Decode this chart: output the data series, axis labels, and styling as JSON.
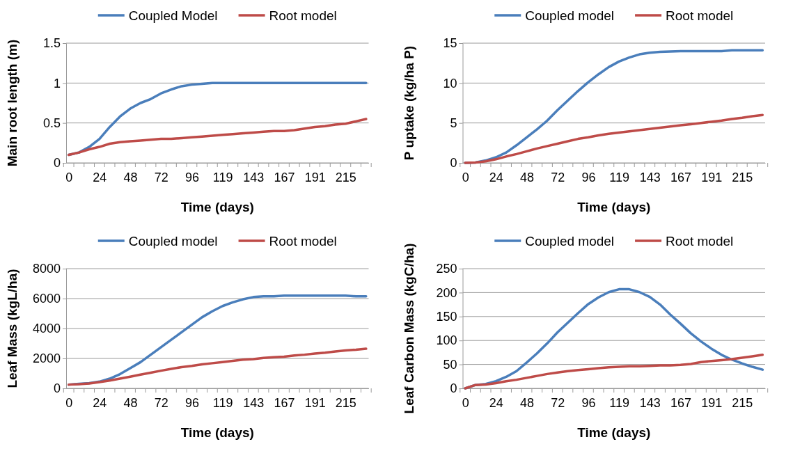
{
  "chart_data": [
    {
      "type": "line",
      "xlabel": "Time (days)",
      "ylabel": "Main root length (m)",
      "categories": [
        "0",
        null,
        null,
        "24",
        null,
        null,
        "48",
        null,
        null,
        "72",
        null,
        null,
        "96",
        null,
        null,
        "119",
        null,
        null,
        "143",
        null,
        null,
        "167",
        null,
        null,
        "191",
        null,
        null,
        "215",
        null,
        null
      ],
      "ylim": [
        0,
        1.5
      ],
      "yticks": [
        0,
        0.5,
        1,
        1.5
      ],
      "grid": "y",
      "legend": "top",
      "series": [
        {
          "name": "Coupled Model",
          "color": "#4a7ebb",
          "values": [
            0.1,
            0.13,
            0.2,
            0.3,
            0.45,
            0.58,
            0.68,
            0.75,
            0.8,
            0.87,
            0.92,
            0.96,
            0.98,
            0.99,
            1.0,
            1.0,
            1.0,
            1.0,
            1.0,
            1.0,
            1.0,
            1.0,
            1.0,
            1.0,
            1.0,
            1.0,
            1.0,
            1.0,
            1.0,
            1.0
          ]
        },
        {
          "name": "Root model",
          "color": "#be4b48",
          "values": [
            0.1,
            0.13,
            0.17,
            0.2,
            0.24,
            0.26,
            0.27,
            0.28,
            0.29,
            0.3,
            0.3,
            0.31,
            0.32,
            0.33,
            0.34,
            0.35,
            0.36,
            0.37,
            0.38,
            0.39,
            0.4,
            0.4,
            0.41,
            0.43,
            0.45,
            0.46,
            0.48,
            0.49,
            0.52,
            0.55
          ]
        }
      ]
    },
    {
      "type": "line",
      "xlabel": "Time (days)",
      "ylabel": "P uptake (kg/ha P)",
      "categories": [
        "0",
        null,
        null,
        "24",
        null,
        null,
        "48",
        null,
        null,
        "72",
        null,
        null,
        "96",
        null,
        null,
        "119",
        null,
        null,
        "143",
        null,
        null,
        "167",
        null,
        null,
        "191",
        null,
        null,
        "215",
        null,
        null
      ],
      "ylim": [
        0,
        15
      ],
      "yticks": [
        0,
        5,
        10,
        15
      ],
      "grid": "y",
      "legend": "top",
      "series": [
        {
          "name": "Coupled model",
          "color": "#4a7ebb",
          "values": [
            0,
            0.05,
            0.3,
            0.7,
            1.3,
            2.2,
            3.2,
            4.2,
            5.3,
            6.6,
            7.8,
            9.0,
            10.1,
            11.1,
            12.0,
            12.7,
            13.2,
            13.6,
            13.8,
            13.9,
            13.95,
            14.0,
            14.0,
            14.0,
            14.0,
            14.0,
            14.1,
            14.1,
            14.1,
            14.1
          ]
        },
        {
          "name": "Root model",
          "color": "#be4b48",
          "values": [
            0,
            0.05,
            0.2,
            0.45,
            0.8,
            1.1,
            1.45,
            1.8,
            2.1,
            2.4,
            2.7,
            3.0,
            3.2,
            3.45,
            3.65,
            3.8,
            3.95,
            4.1,
            4.25,
            4.4,
            4.55,
            4.7,
            4.85,
            5.0,
            5.15,
            5.3,
            5.5,
            5.65,
            5.85,
            6.0
          ]
        }
      ]
    },
    {
      "type": "line",
      "xlabel": "Time (days)",
      "ylabel": "Leaf Mass (kgL/ha)",
      "categories": [
        "0",
        null,
        null,
        "24",
        null,
        null,
        "48",
        null,
        null,
        "72",
        null,
        null,
        "96",
        null,
        null,
        "119",
        null,
        null,
        "143",
        null,
        null,
        "167",
        null,
        null,
        "191",
        null,
        null,
        "215",
        null,
        null
      ],
      "ylim": [
        0,
        8000
      ],
      "yticks": [
        0,
        2000,
        4000,
        6000,
        8000
      ],
      "grid": "y",
      "legend": "top",
      "series": [
        {
          "name": "Coupled model",
          "color": "#4a7ebb",
          "values": [
            250,
            300,
            350,
            450,
            650,
            950,
            1350,
            1750,
            2250,
            2750,
            3250,
            3750,
            4250,
            4750,
            5150,
            5500,
            5750,
            5950,
            6100,
            6150,
            6150,
            6200,
            6200,
            6200,
            6200,
            6200,
            6200,
            6200,
            6150,
            6150
          ]
        },
        {
          "name": "Root model",
          "color": "#be4b48",
          "values": [
            250,
            280,
            330,
            420,
            520,
            650,
            780,
            920,
            1050,
            1180,
            1300,
            1420,
            1500,
            1600,
            1680,
            1760,
            1840,
            1920,
            1950,
            2030,
            2080,
            2120,
            2200,
            2250,
            2330,
            2380,
            2460,
            2530,
            2580,
            2650
          ]
        }
      ]
    },
    {
      "type": "line",
      "xlabel": "Time (days)",
      "ylabel": "Leaf Carbon Mass (kgC/ha)",
      "categories": [
        "0",
        null,
        null,
        "24",
        null,
        null,
        "48",
        null,
        null,
        "72",
        null,
        null,
        "96",
        null,
        null,
        "119",
        null,
        null,
        "143",
        null,
        null,
        "167",
        null,
        null,
        "191",
        null,
        null,
        "215",
        null,
        null
      ],
      "ylim": [
        0,
        250
      ],
      "yticks": [
        0,
        50,
        100,
        150,
        200,
        250
      ],
      "grid": "y",
      "legend": "top",
      "series": [
        {
          "name": "Coupled model",
          "color": "#4a7ebb",
          "values": [
            0,
            7,
            9,
            15,
            24,
            36,
            54,
            73,
            94,
            117,
            137,
            157,
            176,
            190,
            201,
            207,
            207,
            201,
            191,
            175,
            154,
            135,
            115,
            98,
            83,
            70,
            60,
            52,
            45,
            39
          ]
        },
        {
          "name": "Root model",
          "color": "#be4b48",
          "values": [
            0,
            7,
            8,
            11,
            15,
            18,
            22,
            26,
            30,
            33,
            36,
            38,
            40,
            42,
            44,
            45,
            46,
            46,
            47,
            48,
            48,
            49,
            51,
            55,
            57,
            59,
            61,
            64,
            67,
            70
          ]
        }
      ]
    }
  ]
}
